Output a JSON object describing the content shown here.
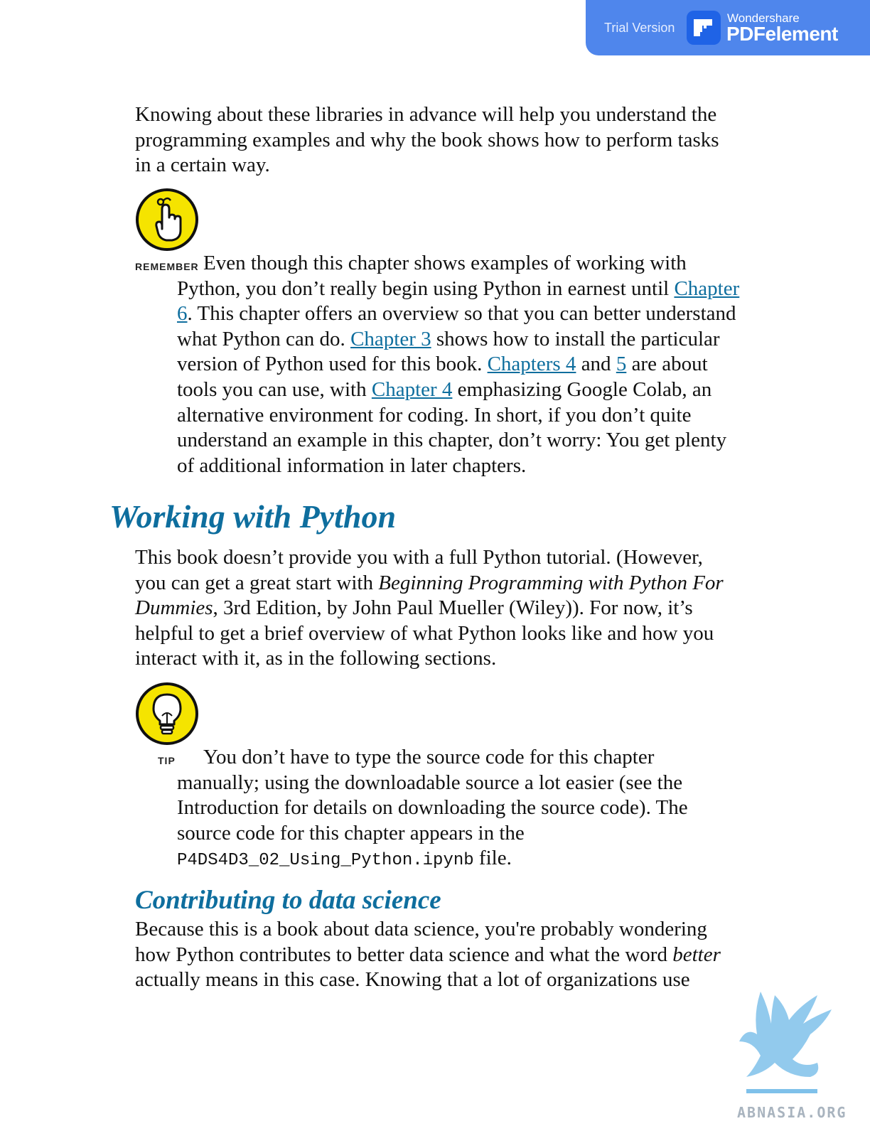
{
  "badge": {
    "trial": "Trial Version",
    "brand_small": "Wondershare",
    "brand_big": "PDFelement",
    "logo_color": "#1f63e6",
    "bg_color": "#4f86ec"
  },
  "intro": [
    "Knowing about these libraries in advance will help you understand the",
    "programming examples and why the book shows how to perform tasks",
    "in a certain way."
  ],
  "remember": {
    "label": "REMEMBER",
    "icon": "pointing-finger-icon",
    "line1": "Even though this chapter shows examples of working with",
    "line2_a": "Python, you don’t really begin using Python in earnest until ",
    "link_ch6a": "Chapter",
    "link_ch6b": "6",
    "line3_b": ". This chapter offers an overview so that you can better understand",
    "line4_a": "what Python can do. ",
    "link_ch3": "Chapter 3",
    "line4_b": " shows how to install the particular",
    "line5_a": "version of Python used for this book. ",
    "link_ch4s": "Chapters 4",
    "line5_b": " and ",
    "link_5": "5",
    "line5_c": " are about",
    "line6_a": "tools you can use, with ",
    "link_ch4": "Chapter 4",
    "line6_b": " emphasizing Google Colab, an",
    "line7": "alternative environment for coding. In short, if you don’t quite",
    "line8": "understand an example in this chapter, don’t worry: You get plenty",
    "line9": "of additional information in later chapters."
  },
  "heading1": "Working with Python",
  "para2": {
    "line1": "This book doesn’t provide you with a full Python tutorial. (However,",
    "line2_a": "you can get a great start with ",
    "line2_i": "Beginning Programming with Python For",
    "line3_i": "Dummies",
    "line3_b": ", 3rd Edition, by John Paul Mueller (Wiley)). For now, it’s",
    "line4": "helpful to get a brief overview of what Python looks like and how you",
    "line5": "interact with it, as in the following sections."
  },
  "tip": {
    "label": "TIP",
    "icon": "lightbulb-icon",
    "line1": "You don’t have to type the source code for this chapter",
    "line2": "manually; using the downloadable source a lot easier (see the",
    "line3": "Introduction for details on downloading the source code). The",
    "line4": "source code for this chapter appears in the",
    "code": "P4DS4D3_02_Using_Python.ipynb",
    "line5_b": " file."
  },
  "heading2": "Contributing to data science",
  "para3": {
    "line1": "Because this is a book about data science, you're probably wondering",
    "line2_a": "how Python contributes to better data science and what the word ",
    "line2_i": "better",
    "line3": "actually means in this case. Knowing that a lot of organizations use"
  },
  "watermark": {
    "text": "ABNASIA.ORG",
    "icon": "griffin-logo-icon"
  },
  "colors": {
    "link": "#0e6e9e",
    "heading": "#0e6e9e",
    "icon_yellow": "#f5e400"
  }
}
